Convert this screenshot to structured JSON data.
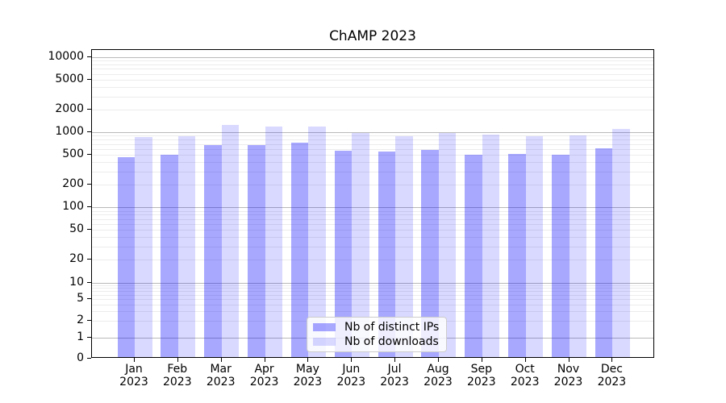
{
  "chart_data": {
    "type": "bar",
    "title": "ChAMP 2023",
    "x_categories": [
      "Jan 2023",
      "Feb 2023",
      "Mar 2023",
      "Apr 2023",
      "May 2023",
      "Jun 2023",
      "Jul 2023",
      "Aug 2023",
      "Sep 2023",
      "Oct 2023",
      "Nov 2023",
      "Dec 2023"
    ],
    "month_labels": [
      "Jan",
      "Feb",
      "Mar",
      "Apr",
      "May",
      "Jun",
      "Jul",
      "Aug",
      "Sep",
      "Oct",
      "Nov",
      "Dec"
    ],
    "year_label": "2023",
    "series": [
      {
        "name": "Nb of distinct IPs",
        "color": "rgba(0,0,255,0.34)",
        "swatch_color": "#a8a8fb",
        "values": [
          445,
          485,
          655,
          650,
          700,
          550,
          530,
          555,
          480,
          500,
          490,
          585
        ]
      },
      {
        "name": "Nb of downloads",
        "color": "rgba(0,0,255,0.15)",
        "swatch_color": "#d9d9fc",
        "values": [
          825,
          845,
          1200,
          1150,
          1140,
          940,
          850,
          935,
          890,
          865,
          870,
          1065
        ]
      }
    ],
    "y_axis": {
      "scale": "symlog",
      "tick_values": [
        0,
        1,
        2,
        5,
        10,
        20,
        50,
        100,
        200,
        500,
        1000,
        2000,
        5000,
        10000
      ],
      "range": [
        0,
        12500
      ],
      "grid_major": [
        1,
        10,
        100,
        1000,
        10000
      ],
      "grid_minor_subs": [
        2,
        3,
        4,
        5,
        6,
        7,
        8,
        9
      ]
    },
    "legend": {
      "position": "lower center",
      "items": [
        {
          "label": "Nb of distinct IPs"
        },
        {
          "label": "Nb of downloads"
        }
      ]
    },
    "colors": {
      "grid_major": "#b9b9b9",
      "grid_minor": "#ececec",
      "axis": "#000000"
    }
  }
}
